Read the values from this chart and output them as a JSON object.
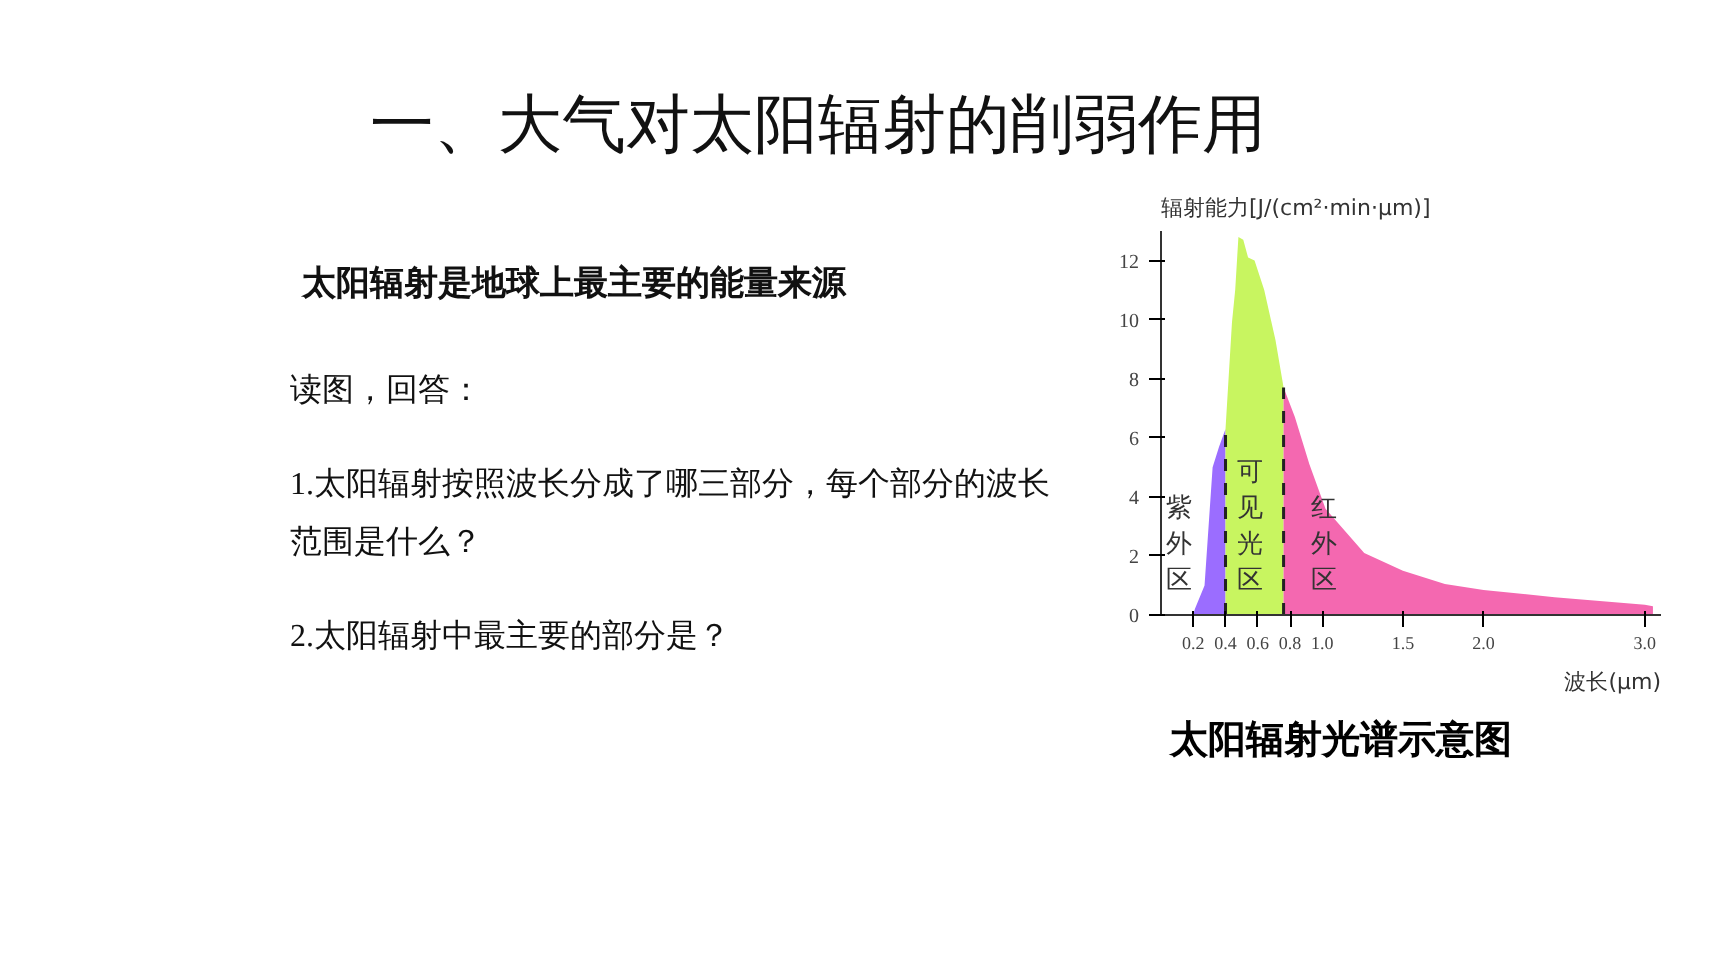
{
  "chart_data": {
    "type": "area",
    "title": "太阳辐射光谱示意图",
    "ylabel": "辐射能力[J/(cm²·min·μm)]",
    "xlabel": "波长(μm)",
    "annotations": [
      "一、大气对太阳辐射的削弱作用",
      "太阳辐射是地球上最主要的能量来源",
      "读图，回答：",
      "1.太阳辐射按照波长分成了哪三部分，每个部分的波长范围是什么？",
      "2.太阳辐射中最主要的部分是？"
    ],
    "series": [
      {
        "name": "紫外区",
        "color": "#9b6dff",
        "x": [
          0.2,
          0.21,
          0.27,
          0.32,
          0.36,
          0.4
        ],
        "values": [
          0,
          0.2,
          1.0,
          5.0,
          5.7,
          6.3
        ]
      },
      {
        "name": "可见光区",
        "color": "#c8f560",
        "x": [
          0.4,
          0.44,
          0.46,
          0.48,
          0.51,
          0.54,
          0.58,
          0.64,
          0.71,
          0.76
        ],
        "values": [
          6.3,
          9.9,
          11,
          12.8,
          12.7,
          12.1,
          12,
          11,
          9.3,
          7.7
        ]
      },
      {
        "name": "红外区",
        "color": "#f468b0",
        "x": [
          0.76,
          0.83,
          0.92,
          1.02,
          1.26,
          1.5,
          1.76,
          2.0,
          2.44,
          3.0,
          3.05
        ],
        "values": [
          7.7,
          6.7,
          5.1,
          3.6,
          2.1,
          1.5,
          1.05,
          0.85,
          0.6,
          0.35,
          0.3
        ]
      }
    ],
    "ref_lines": [
      {
        "axis": "x",
        "value": 0.4,
        "line_style": "dashed",
        "color": "#222222"
      },
      {
        "axis": "x",
        "value": 0.76,
        "line_style": "dashed",
        "color": "#222222"
      }
    ],
    "xlim": [
      0,
      3.1
    ],
    "ylim": [
      0,
      13
    ],
    "xticks": [
      0.2,
      0.4,
      0.6,
      0.8,
      {
        "value": 1,
        "label": "1.0"
      },
      1.5,
      {
        "value": 2,
        "label": "2.0"
      },
      {
        "value": 3,
        "label": "3.0"
      }
    ],
    "yticks": [
      0,
      2,
      4,
      6,
      8,
      10,
      12
    ],
    "grid": false,
    "marker": "none"
  }
}
